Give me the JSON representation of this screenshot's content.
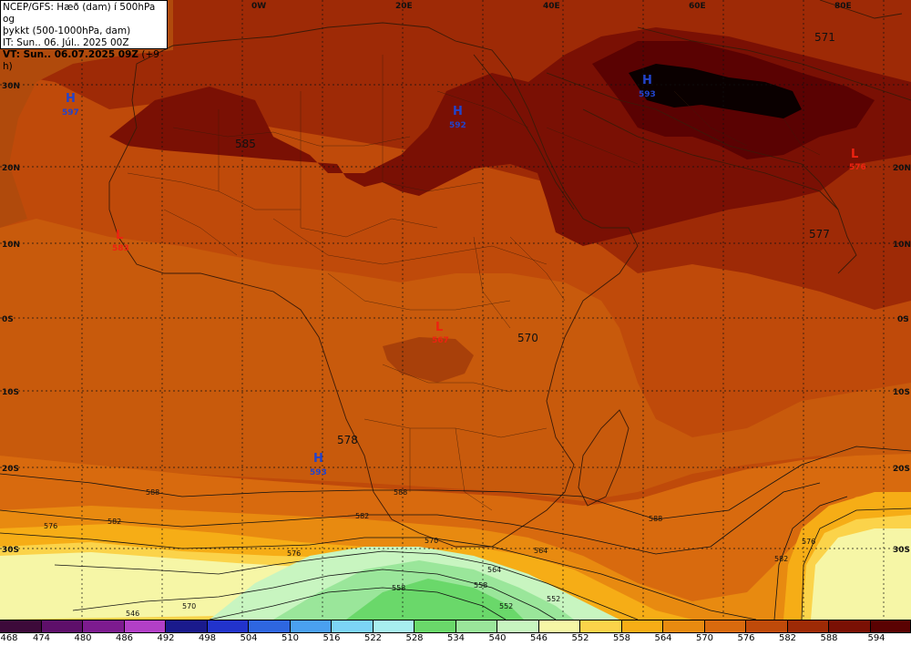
{
  "header": {
    "line1": "NCEP/GFS: Hæð (dam) í 500hPa og",
    "line2": "þykkt (500-1000hPa, dam)",
    "line3": "IT: Sun.. 06. Júl.. 2025 00Z",
    "line4_prefix": "VT: Sun.. 06.07.2025 09Z",
    "line4_suffix": " (+9 h)"
  },
  "graticule": {
    "top_labels": [
      "0W",
      "20E",
      "40E",
      "60E",
      "80E"
    ],
    "left_labels": [
      "30N",
      "20N",
      "10N",
      "0S",
      "10S",
      "20S",
      "30S"
    ],
    "right_labels": [
      "20N",
      "10N",
      "0S",
      "10S",
      "20S",
      "30S"
    ]
  },
  "pressure_centers": [
    {
      "type": "H",
      "value": "597",
      "color": "#2244cc"
    },
    {
      "type": "H",
      "value": "592",
      "color": "#2244cc"
    },
    {
      "type": "H",
      "value": "593",
      "color": "#2244cc"
    },
    {
      "type": "H",
      "value": "593",
      "color": "#2244cc"
    },
    {
      "type": "L",
      "value": "583",
      "color": "#ee2211"
    },
    {
      "type": "L",
      "value": "567",
      "color": "#ee2211"
    },
    {
      "type": "L",
      "value": "576",
      "color": "#ee2211"
    }
  ],
  "contour_labels": [
    "585",
    "570",
    "578",
    "577",
    "571",
    "588",
    "582",
    "576",
    "570",
    "564",
    "558",
    "552",
    "546",
    "588",
    "582",
    "576",
    "564",
    "558",
    "552",
    "570",
    "588",
    "576",
    "582"
  ],
  "colorbar": {
    "labels": [
      "468",
      "474",
      "480",
      "486",
      "492",
      "498",
      "504",
      "510",
      "516",
      "522",
      "528",
      "534",
      "540",
      "546",
      "552",
      "558",
      "564",
      "570",
      "576",
      "582",
      "588",
      "594"
    ],
    "colors": [
      "#3d0a3a",
      "#5e0f6a",
      "#7d1b8f",
      "#b23fc7",
      "#1a1a8c",
      "#2233cc",
      "#2e66e0",
      "#4aa0f0",
      "#7cd4f6",
      "#a8eef0",
      "#6ad86a",
      "#9ae69a",
      "#c8f5c0",
      "#f6f6a6",
      "#fbd34a",
      "#f6ad16",
      "#e88a10",
      "#d86a0e",
      "#bf4a0a",
      "#9e2a06",
      "#7a1004",
      "#5a0202"
    ]
  }
}
